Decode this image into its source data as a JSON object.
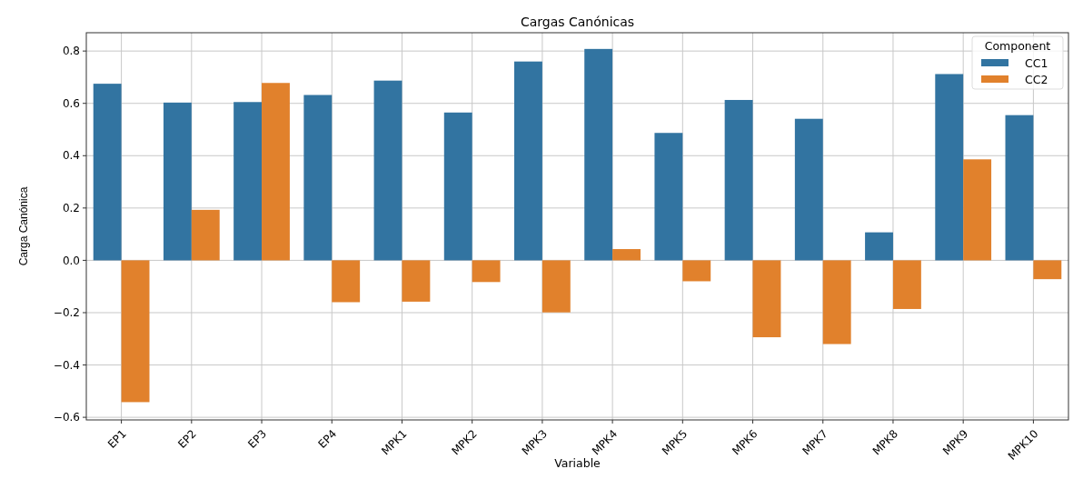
{
  "chart_data": {
    "type": "bar",
    "title": "Cargas Canónicas",
    "xlabel": "Variable",
    "ylabel": "Carga Canónica",
    "legend_title": "Component",
    "categories": [
      "EP1",
      "EP2",
      "EP3",
      "EP4",
      "MPK1",
      "MPK2",
      "MPK3",
      "MPK4",
      "MPK5",
      "MPK6",
      "MPK7",
      "MPK8",
      "MPK9",
      "MPK10"
    ],
    "series": [
      {
        "name": "CC1",
        "color": "#3274a1",
        "values": [
          0.675,
          0.603,
          0.605,
          0.632,
          0.687,
          0.565,
          0.76,
          0.808,
          0.487,
          0.613,
          0.541,
          0.107,
          0.712,
          0.555
        ]
      },
      {
        "name": "CC2",
        "color": "#e1812c",
        "values": [
          -0.542,
          0.193,
          0.678,
          -0.16,
          -0.158,
          -0.083,
          -0.199,
          0.043,
          -0.08,
          -0.294,
          -0.32,
          -0.186,
          0.386,
          -0.072
        ]
      }
    ],
    "ylim": [
      -0.61,
      0.87
    ],
    "yticks": [
      {
        "value": -0.6,
        "label": "−0.6"
      },
      {
        "value": -0.4,
        "label": "−0.4"
      },
      {
        "value": -0.2,
        "label": "−0.2"
      },
      "0.0",
      0.2,
      0.4,
      0.6,
      0.8
    ],
    "grid": true,
    "legend": "top right"
  }
}
